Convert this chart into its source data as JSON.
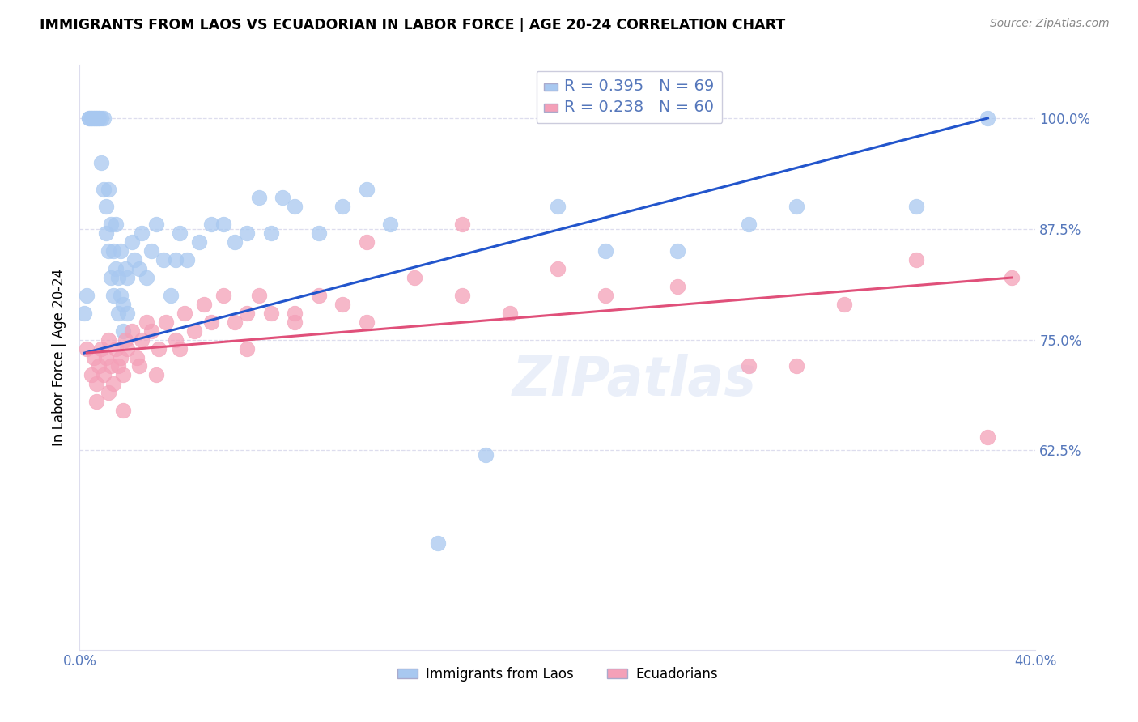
{
  "title": "IMMIGRANTS FROM LAOS VS ECUADORIAN IN LABOR FORCE | AGE 20-24 CORRELATION CHART",
  "source_text": "Source: ZipAtlas.com",
  "ylabel": "In Labor Force | Age 20-24",
  "watermark": "ZIPatlas",
  "legend_blue_r": "0.395",
  "legend_blue_n": "69",
  "legend_pink_r": "0.238",
  "legend_pink_n": "60",
  "legend_label_blue": "Immigrants from Laos",
  "legend_label_pink": "Ecuadorians",
  "xlim": [
    0.0,
    0.4
  ],
  "ylim": [
    0.4,
    1.06
  ],
  "yticks": [
    0.625,
    0.75,
    0.875,
    1.0
  ],
  "ytick_labels": [
    "62.5%",
    "75.0%",
    "87.5%",
    "100.0%"
  ],
  "xticks": [
    0.0,
    0.1,
    0.2,
    0.3,
    0.4
  ],
  "xtick_labels": [
    "0.0%",
    "",
    "",
    "",
    "40.0%"
  ],
  "color_blue": "#A8C8F0",
  "color_pink": "#F4A0B8",
  "line_blue": "#2255CC",
  "line_pink": "#E0507A",
  "axis_color": "#5577BB",
  "grid_color": "#DDDDEE",
  "blue_x": [
    0.002,
    0.003,
    0.004,
    0.004,
    0.005,
    0.005,
    0.006,
    0.006,
    0.007,
    0.007,
    0.008,
    0.008,
    0.009,
    0.009,
    0.01,
    0.01,
    0.011,
    0.011,
    0.012,
    0.012,
    0.013,
    0.013,
    0.014,
    0.014,
    0.015,
    0.015,
    0.016,
    0.016,
    0.017,
    0.017,
    0.018,
    0.018,
    0.019,
    0.02,
    0.02,
    0.022,
    0.023,
    0.025,
    0.026,
    0.028,
    0.03,
    0.032,
    0.035,
    0.038,
    0.04,
    0.042,
    0.045,
    0.05,
    0.055,
    0.06,
    0.065,
    0.07,
    0.075,
    0.08,
    0.085,
    0.09,
    0.1,
    0.11,
    0.12,
    0.13,
    0.15,
    0.17,
    0.2,
    0.22,
    0.25,
    0.28,
    0.3,
    0.35,
    0.38
  ],
  "blue_y": [
    0.78,
    0.8,
    1.0,
    1.0,
    1.0,
    1.0,
    1.0,
    1.0,
    1.0,
    1.0,
    1.0,
    1.0,
    1.0,
    0.95,
    0.92,
    1.0,
    0.9,
    0.87,
    0.85,
    0.92,
    0.82,
    0.88,
    0.85,
    0.8,
    0.88,
    0.83,
    0.78,
    0.82,
    0.8,
    0.85,
    0.79,
    0.76,
    0.83,
    0.82,
    0.78,
    0.86,
    0.84,
    0.83,
    0.87,
    0.82,
    0.85,
    0.88,
    0.84,
    0.8,
    0.84,
    0.87,
    0.84,
    0.86,
    0.88,
    0.88,
    0.86,
    0.87,
    0.91,
    0.87,
    0.91,
    0.9,
    0.87,
    0.9,
    0.92,
    0.88,
    0.52,
    0.62,
    0.9,
    0.85,
    0.85,
    0.88,
    0.9,
    0.9,
    1.0
  ],
  "pink_x": [
    0.003,
    0.005,
    0.006,
    0.007,
    0.008,
    0.009,
    0.01,
    0.011,
    0.012,
    0.013,
    0.014,
    0.015,
    0.016,
    0.017,
    0.018,
    0.019,
    0.02,
    0.022,
    0.024,
    0.026,
    0.028,
    0.03,
    0.033,
    0.036,
    0.04,
    0.044,
    0.048,
    0.052,
    0.06,
    0.065,
    0.07,
    0.075,
    0.08,
    0.09,
    0.1,
    0.11,
    0.12,
    0.14,
    0.16,
    0.18,
    0.2,
    0.22,
    0.25,
    0.28,
    0.3,
    0.32,
    0.35,
    0.38,
    0.39,
    0.007,
    0.012,
    0.018,
    0.025,
    0.032,
    0.042,
    0.055,
    0.07,
    0.09,
    0.12,
    0.16
  ],
  "pink_y": [
    0.74,
    0.71,
    0.73,
    0.7,
    0.72,
    0.74,
    0.71,
    0.73,
    0.75,
    0.72,
    0.7,
    0.74,
    0.72,
    0.73,
    0.71,
    0.75,
    0.74,
    0.76,
    0.73,
    0.75,
    0.77,
    0.76,
    0.74,
    0.77,
    0.75,
    0.78,
    0.76,
    0.79,
    0.8,
    0.77,
    0.78,
    0.8,
    0.78,
    0.77,
    0.8,
    0.79,
    0.77,
    0.82,
    0.8,
    0.78,
    0.83,
    0.8,
    0.81,
    0.72,
    0.72,
    0.79,
    0.84,
    0.64,
    0.82,
    0.68,
    0.69,
    0.67,
    0.72,
    0.71,
    0.74,
    0.77,
    0.74,
    0.78,
    0.86,
    0.88
  ],
  "blue_line_x0": 0.002,
  "blue_line_x1": 0.38,
  "blue_line_y0": 0.735,
  "blue_line_y1": 1.0,
  "pink_line_x0": 0.003,
  "pink_line_x1": 0.39,
  "pink_line_y0": 0.735,
  "pink_line_y1": 0.82
}
